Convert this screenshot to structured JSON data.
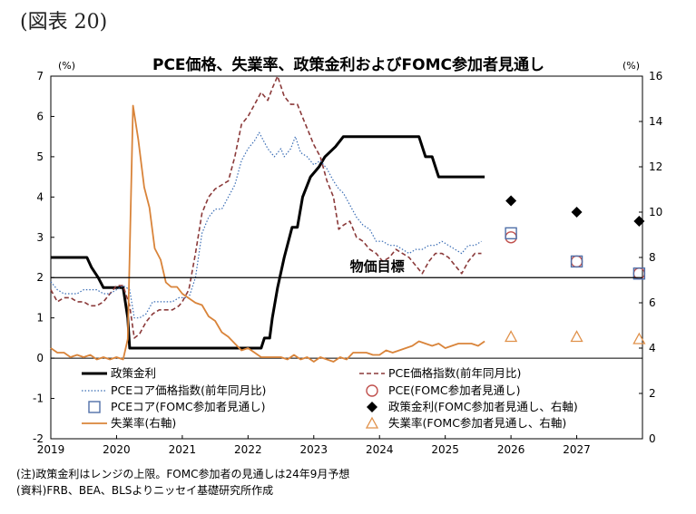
{
  "figure_label": "(図表 20)",
  "notes": [
    "(注)政策金利はレンジの上限。FOMC参加者の見通しは24年9月予想",
    "(資料)FRB、BEA、BLSよりニッセイ基礎研究所作成"
  ],
  "chart_data": {
    "type": "line",
    "title": "PCE価格、失業率、政策金利およびFOMC参加者見通し",
    "left_unit": "(%)",
    "right_unit": "(%)",
    "ylim_left": [
      -2,
      7
    ],
    "ylim_right": [
      0,
      16
    ],
    "y_ticks_left": [
      "-2",
      "-1",
      "0",
      "1",
      "2",
      "3",
      "4",
      "5",
      "6",
      "7"
    ],
    "y_ticks_right": [
      "0",
      "2",
      "4",
      "6",
      "8",
      "10",
      "12",
      "14",
      "16"
    ],
    "x_range": [
      2019,
      2028
    ],
    "x_ticks": [
      "2019",
      "2020",
      "2021",
      "2022",
      "2023",
      "2024",
      "2025",
      "2026",
      "2027"
    ],
    "reference_line": {
      "value": 2,
      "label": "物価目標"
    },
    "series": [
      {
        "name": "政策金利",
        "axis": "left",
        "color": "#000000",
        "style": "solid-thick",
        "points": [
          [
            2019.0,
            2.5
          ],
          [
            2019.55,
            2.5
          ],
          [
            2019.62,
            2.25
          ],
          [
            2019.72,
            2.0
          ],
          [
            2019.8,
            1.75
          ],
          [
            2020.1,
            1.75
          ],
          [
            2020.17,
            1.0
          ],
          [
            2020.2,
            0.25
          ],
          [
            2022.2,
            0.25
          ],
          [
            2022.25,
            0.5
          ],
          [
            2022.33,
            0.5
          ],
          [
            2022.37,
            1.0
          ],
          [
            2022.45,
            1.75
          ],
          [
            2022.55,
            2.5
          ],
          [
            2022.67,
            3.25
          ],
          [
            2022.75,
            3.25
          ],
          [
            2022.83,
            4.0
          ],
          [
            2022.95,
            4.5
          ],
          [
            2023.08,
            4.75
          ],
          [
            2023.17,
            5.0
          ],
          [
            2023.33,
            5.25
          ],
          [
            2023.45,
            5.5
          ],
          [
            2024.6,
            5.5
          ],
          [
            2024.7,
            5.0
          ],
          [
            2024.8,
            5.0
          ],
          [
            2024.9,
            4.5
          ],
          [
            2025.6,
            4.5
          ]
        ]
      },
      {
        "name": "PCE価格指数(前年同月比)",
        "axis": "left",
        "color": "#8b3a3a",
        "style": "dashed",
        "points": [
          [
            2019.0,
            1.7
          ],
          [
            2019.1,
            1.4
          ],
          [
            2019.2,
            1.5
          ],
          [
            2019.3,
            1.5
          ],
          [
            2019.4,
            1.4
          ],
          [
            2019.5,
            1.4
          ],
          [
            2019.6,
            1.3
          ],
          [
            2019.7,
            1.3
          ],
          [
            2019.8,
            1.4
          ],
          [
            2019.9,
            1.6
          ],
          [
            2020.0,
            1.8
          ],
          [
            2020.1,
            1.8
          ],
          [
            2020.2,
            1.3
          ],
          [
            2020.27,
            0.5
          ],
          [
            2020.35,
            0.6
          ],
          [
            2020.45,
            0.9
          ],
          [
            2020.55,
            1.1
          ],
          [
            2020.65,
            1.2
          ],
          [
            2020.75,
            1.2
          ],
          [
            2020.85,
            1.2
          ],
          [
            2020.95,
            1.3
          ],
          [
            2021.0,
            1.4
          ],
          [
            2021.1,
            1.7
          ],
          [
            2021.2,
            2.6
          ],
          [
            2021.3,
            3.6
          ],
          [
            2021.4,
            4.0
          ],
          [
            2021.5,
            4.2
          ],
          [
            2021.6,
            4.3
          ],
          [
            2021.7,
            4.4
          ],
          [
            2021.8,
            5.0
          ],
          [
            2021.9,
            5.8
          ],
          [
            2022.0,
            6.0
          ],
          [
            2022.1,
            6.3
          ],
          [
            2022.2,
            6.6
          ],
          [
            2022.3,
            6.4
          ],
          [
            2022.37,
            6.7
          ],
          [
            2022.45,
            7.0
          ],
          [
            2022.55,
            6.5
          ],
          [
            2022.65,
            6.3
          ],
          [
            2022.75,
            6.3
          ],
          [
            2022.85,
            5.9
          ],
          [
            2022.95,
            5.5
          ],
          [
            2023.0,
            5.3
          ],
          [
            2023.1,
            5.0
          ],
          [
            2023.2,
            4.4
          ],
          [
            2023.3,
            4.0
          ],
          [
            2023.38,
            3.2
          ],
          [
            2023.45,
            3.3
          ],
          [
            2023.55,
            3.4
          ],
          [
            2023.65,
            3.0
          ],
          [
            2023.75,
            2.9
          ],
          [
            2023.85,
            2.7
          ],
          [
            2023.95,
            2.6
          ],
          [
            2024.05,
            2.4
          ],
          [
            2024.15,
            2.5
          ],
          [
            2024.25,
            2.7
          ],
          [
            2024.35,
            2.6
          ],
          [
            2024.45,
            2.5
          ],
          [
            2024.55,
            2.3
          ],
          [
            2024.65,
            2.1
          ],
          [
            2024.75,
            2.4
          ],
          [
            2024.85,
            2.6
          ],
          [
            2024.95,
            2.6
          ],
          [
            2025.05,
            2.5
          ],
          [
            2025.15,
            2.3
          ],
          [
            2025.25,
            2.1
          ],
          [
            2025.35,
            2.4
          ],
          [
            2025.45,
            2.6
          ],
          [
            2025.55,
            2.6
          ]
        ]
      },
      {
        "name": "PCEコア価格指数(前年同月比)",
        "axis": "left",
        "color": "#3a6db5",
        "style": "dotted",
        "points": [
          [
            2019.0,
            1.9
          ],
          [
            2019.1,
            1.7
          ],
          [
            2019.2,
            1.6
          ],
          [
            2019.3,
            1.6
          ],
          [
            2019.4,
            1.6
          ],
          [
            2019.5,
            1.7
          ],
          [
            2019.6,
            1.7
          ],
          [
            2019.7,
            1.7
          ],
          [
            2019.8,
            1.6
          ],
          [
            2019.9,
            1.6
          ],
          [
            2020.0,
            1.7
          ],
          [
            2020.1,
            1.8
          ],
          [
            2020.2,
            1.7
          ],
          [
            2020.27,
            1.0
          ],
          [
            2020.35,
            1.0
          ],
          [
            2020.45,
            1.1
          ],
          [
            2020.55,
            1.4
          ],
          [
            2020.65,
            1.4
          ],
          [
            2020.75,
            1.4
          ],
          [
            2020.85,
            1.4
          ],
          [
            2020.95,
            1.5
          ],
          [
            2021.0,
            1.5
          ],
          [
            2021.1,
            1.5
          ],
          [
            2021.2,
            2.0
          ],
          [
            2021.3,
            3.1
          ],
          [
            2021.4,
            3.5
          ],
          [
            2021.5,
            3.7
          ],
          [
            2021.6,
            3.7
          ],
          [
            2021.7,
            4.0
          ],
          [
            2021.8,
            4.3
          ],
          [
            2021.9,
            4.9
          ],
          [
            2022.0,
            5.2
          ],
          [
            2022.1,
            5.4
          ],
          [
            2022.17,
            5.6
          ],
          [
            2022.3,
            5.2
          ],
          [
            2022.4,
            5.0
          ],
          [
            2022.5,
            5.2
          ],
          [
            2022.55,
            5.0
          ],
          [
            2022.65,
            5.2
          ],
          [
            2022.72,
            5.5
          ],
          [
            2022.8,
            5.1
          ],
          [
            2022.9,
            5.0
          ],
          [
            2023.0,
            4.8
          ],
          [
            2023.1,
            4.9
          ],
          [
            2023.2,
            4.7
          ],
          [
            2023.3,
            4.4
          ],
          [
            2023.38,
            4.2
          ],
          [
            2023.45,
            4.1
          ],
          [
            2023.55,
            3.8
          ],
          [
            2023.65,
            3.5
          ],
          [
            2023.75,
            3.3
          ],
          [
            2023.85,
            3.2
          ],
          [
            2023.95,
            2.9
          ],
          [
            2024.05,
            2.9
          ],
          [
            2024.15,
            2.8
          ],
          [
            2024.25,
            2.8
          ],
          [
            2024.35,
            2.7
          ],
          [
            2024.45,
            2.6
          ],
          [
            2024.55,
            2.7
          ],
          [
            2024.65,
            2.7
          ],
          [
            2024.75,
            2.8
          ],
          [
            2024.85,
            2.8
          ],
          [
            2024.95,
            2.9
          ],
          [
            2025.05,
            2.8
          ],
          [
            2025.15,
            2.7
          ],
          [
            2025.25,
            2.6
          ],
          [
            2025.35,
            2.8
          ],
          [
            2025.45,
            2.8
          ],
          [
            2025.55,
            2.9
          ]
        ]
      },
      {
        "name": "失業率(右軸)",
        "axis": "right",
        "color": "#d9843a",
        "style": "solid",
        "points": [
          [
            2019.0,
            4.0
          ],
          [
            2019.1,
            3.8
          ],
          [
            2019.2,
            3.8
          ],
          [
            2019.3,
            3.6
          ],
          [
            2019.4,
            3.7
          ],
          [
            2019.5,
            3.6
          ],
          [
            2019.6,
            3.7
          ],
          [
            2019.7,
            3.5
          ],
          [
            2019.8,
            3.6
          ],
          [
            2019.9,
            3.5
          ],
          [
            2020.0,
            3.6
          ],
          [
            2020.1,
            3.5
          ],
          [
            2020.17,
            4.4
          ],
          [
            2020.25,
            14.7
          ],
          [
            2020.33,
            13.2
          ],
          [
            2020.42,
            11.1
          ],
          [
            2020.5,
            10.2
          ],
          [
            2020.58,
            8.4
          ],
          [
            2020.67,
            7.9
          ],
          [
            2020.75,
            6.9
          ],
          [
            2020.83,
            6.7
          ],
          [
            2020.92,
            6.7
          ],
          [
            2021.0,
            6.4
          ],
          [
            2021.1,
            6.2
          ],
          [
            2021.2,
            6.0
          ],
          [
            2021.3,
            5.9
          ],
          [
            2021.4,
            5.4
          ],
          [
            2021.5,
            5.2
          ],
          [
            2021.6,
            4.7
          ],
          [
            2021.7,
            4.5
          ],
          [
            2021.8,
            4.2
          ],
          [
            2021.9,
            3.9
          ],
          [
            2022.0,
            4.0
          ],
          [
            2022.1,
            3.8
          ],
          [
            2022.2,
            3.6
          ],
          [
            2022.3,
            3.6
          ],
          [
            2022.4,
            3.6
          ],
          [
            2022.5,
            3.6
          ],
          [
            2022.6,
            3.5
          ],
          [
            2022.7,
            3.7
          ],
          [
            2022.8,
            3.5
          ],
          [
            2022.9,
            3.6
          ],
          [
            2023.0,
            3.4
          ],
          [
            2023.1,
            3.6
          ],
          [
            2023.2,
            3.5
          ],
          [
            2023.3,
            3.4
          ],
          [
            2023.4,
            3.6
          ],
          [
            2023.5,
            3.5
          ],
          [
            2023.6,
            3.8
          ],
          [
            2023.7,
            3.8
          ],
          [
            2023.8,
            3.8
          ],
          [
            2023.9,
            3.7
          ],
          [
            2024.0,
            3.7
          ],
          [
            2024.1,
            3.9
          ],
          [
            2024.2,
            3.8
          ],
          [
            2024.3,
            3.9
          ],
          [
            2024.4,
            4.0
          ],
          [
            2024.5,
            4.1
          ],
          [
            2024.6,
            4.3
          ],
          [
            2024.7,
            4.2
          ],
          [
            2024.8,
            4.1
          ],
          [
            2024.9,
            4.2
          ],
          [
            2025.0,
            4.0
          ],
          [
            2025.1,
            4.1
          ],
          [
            2025.2,
            4.2
          ],
          [
            2025.3,
            4.2
          ],
          [
            2025.4,
            4.2
          ],
          [
            2025.5,
            4.1
          ],
          [
            2025.6,
            4.3
          ]
        ]
      }
    ],
    "projections": [
      {
        "name": "PCE(FOMC参加者見通し)",
        "axis": "left",
        "marker": "circle-open",
        "color": "#c0504d",
        "points": [
          [
            2026.0,
            3.0
          ],
          [
            2027.0,
            2.4
          ],
          [
            2027.95,
            2.1
          ]
        ]
      },
      {
        "name": "PCEコア(FOMC参加者見通し)",
        "axis": "left",
        "marker": "square-open",
        "color": "#4f6fa8",
        "points": [
          [
            2026.0,
            3.1
          ],
          [
            2027.0,
            2.4
          ],
          [
            2027.95,
            2.1
          ]
        ]
      },
      {
        "name": "政策金利(FOMC参加者見通し、右軸)",
        "axis": "right",
        "marker": "diamond-filled",
        "color": "#000000",
        "points": [
          [
            2026.0,
            10.5
          ],
          [
            2027.0,
            10.0
          ],
          [
            2027.95,
            9.6
          ]
        ]
      },
      {
        "name": "失業率(FOMC参加者見通し、右軸)",
        "axis": "right",
        "marker": "triangle-open",
        "color": "#e0914a",
        "points": [
          [
            2026.0,
            4.5
          ],
          [
            2027.0,
            4.5
          ],
          [
            2027.95,
            4.4
          ]
        ]
      }
    ],
    "legend": [
      {
        "label": "政策金利",
        "key": "policy"
      },
      {
        "label": "PCE価格指数(前年同月比)",
        "key": "pce"
      },
      {
        "label": "PCEコア価格指数(前年同月比)",
        "key": "core"
      },
      {
        "label": "PCE(FOMC参加者見通し)",
        "key": "pce_proj"
      },
      {
        "label": "PCEコア(FOMC参加者見通し)",
        "key": "core_proj"
      },
      {
        "label": "政策金利(FOMC参加者見通し、右軸)",
        "key": "policy_proj"
      },
      {
        "label": "失業率(右軸)",
        "key": "unemp"
      },
      {
        "label": "失業率(FOMC参加者見通し、右軸)",
        "key": "unemp_proj"
      }
    ]
  }
}
